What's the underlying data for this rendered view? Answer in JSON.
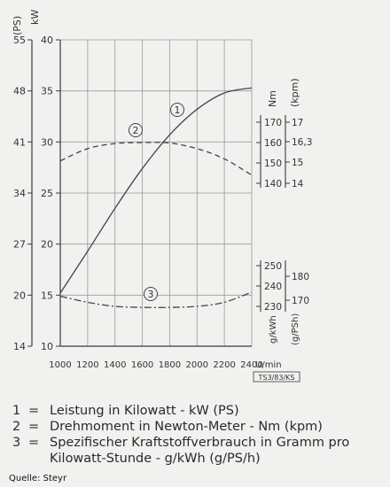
{
  "chart_data": {
    "type": "line",
    "x_axis": {
      "label": "U/min",
      "ticks": [
        1000,
        1200,
        1400,
        1600,
        1800,
        2000,
        2200,
        2400
      ],
      "range": [
        1000,
        2400
      ]
    },
    "left_axes": {
      "kw": {
        "unit": "kW",
        "ticks": [
          10,
          15,
          20,
          25,
          30,
          35,
          40
        ],
        "range": [
          10,
          40
        ]
      },
      "ps": {
        "unit": "(PS)",
        "ticks": [
          14,
          20,
          27,
          34,
          41,
          48,
          55
        ]
      }
    },
    "right_axes": {
      "torque_nm": {
        "unit": "Nm",
        "ticks": [
          140,
          150,
          160,
          170
        ]
      },
      "torque_kpm": {
        "unit": "(kpm)",
        "ticks": [
          "14",
          "15",
          "16,3",
          "17"
        ]
      },
      "consumption_gkwh": {
        "unit": "g/kWh",
        "ticks": [
          230,
          240,
          250
        ]
      },
      "consumption_gpsh": {
        "unit": "(g/PSh)",
        "ticks": [
          170,
          180
        ]
      }
    },
    "series": [
      {
        "name": "1",
        "unit": "kW",
        "x": [
          1000,
          1200,
          1400,
          1600,
          1800,
          2000,
          2200,
          2400
        ],
        "values": [
          15.2,
          19.3,
          23.5,
          27.4,
          30.7,
          33.2,
          34.8,
          35.3
        ]
      },
      {
        "name": "2",
        "unit": "Nm",
        "x": [
          1000,
          1200,
          1400,
          1600,
          1800,
          2000,
          2200,
          2400
        ],
        "values": [
          151,
          157,
          159.5,
          160,
          159.8,
          157,
          152,
          144
        ]
      },
      {
        "name": "3",
        "unit": "g/kWh",
        "x": [
          1000,
          1200,
          1400,
          1600,
          1800,
          2000,
          2200,
          2400
        ],
        "values": [
          235,
          232,
          230,
          229.5,
          229.5,
          230,
          232,
          237
        ]
      }
    ],
    "chart_code": "TS3/83/KS"
  },
  "legend": [
    {
      "num": "1",
      "text": "Leistung in Kilowatt - kW (PS)"
    },
    {
      "num": "2",
      "text": "Drehmoment in Newton-Meter - Nm (kpm)"
    },
    {
      "num": "3",
      "text": "Spezifischer Kraftstoffverbrauch in Gramm pro",
      "cont": "Kilowatt-Stunde - g/kWh (g/PS/h)"
    }
  ],
  "source": "Quelle: Steyr"
}
